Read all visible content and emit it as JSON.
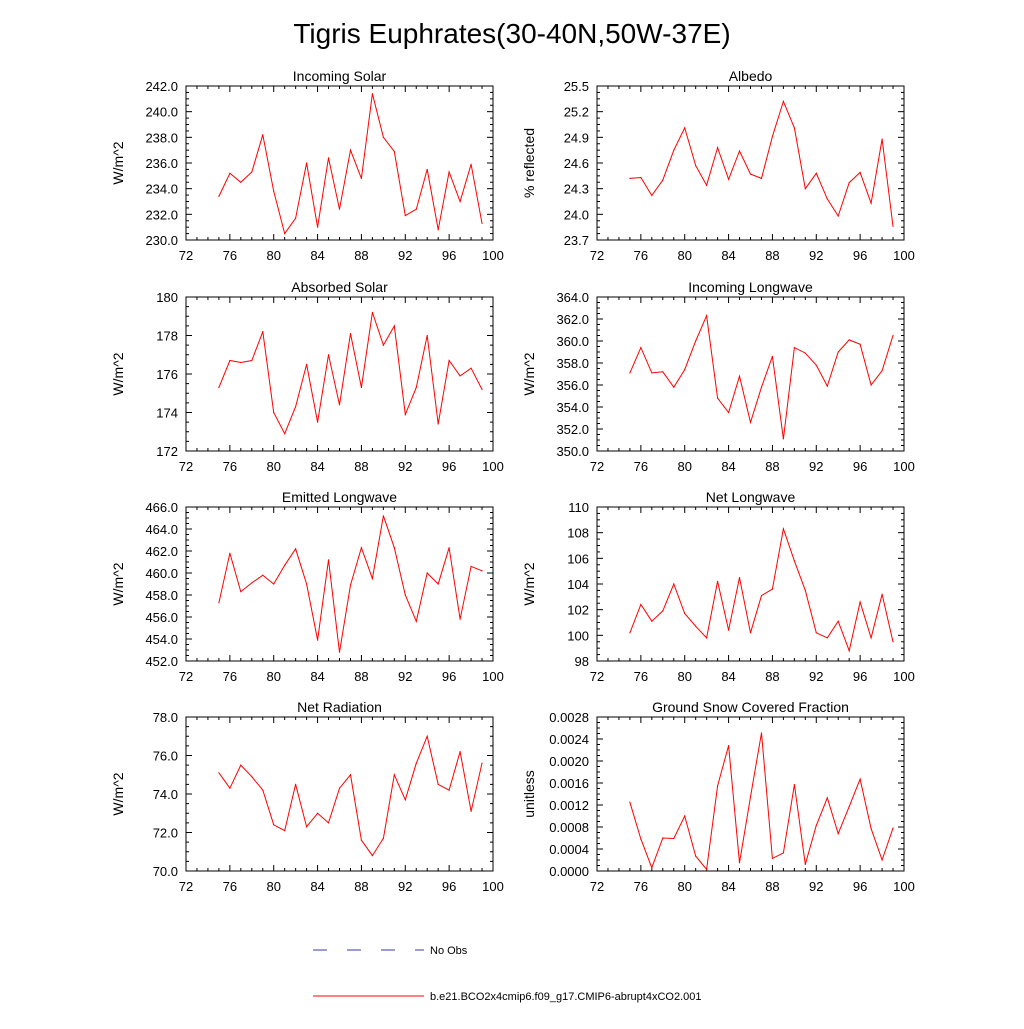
{
  "figure_title": "Tigris Euphrates(30-40N,50W-37E)",
  "colors": {
    "model_line": "#ff0000",
    "obs_line": "#3a3aa8",
    "axis": "#000000"
  },
  "legend": {
    "obs_label": "No Obs",
    "model_label": "b.e21.BCO2x4cmip6.f09_g17.CMIP6-abrupt4xCO2.001"
  },
  "chart_data": [
    {
      "type": "line",
      "title": "Incoming Solar",
      "ylabel": "W/m^2",
      "xlabel": "",
      "xlim": [
        72,
        100
      ],
      "ylim": [
        230.0,
        242.0
      ],
      "xticks": [
        "72",
        "76",
        "80",
        "84",
        "88",
        "92",
        "96",
        "100"
      ],
      "yticks": [
        "230.0",
        "232.0",
        "234.0",
        "236.0",
        "238.0",
        "240.0",
        "242.0"
      ],
      "x": [
        75,
        76,
        77,
        78,
        79,
        80,
        81,
        82,
        83,
        84,
        85,
        86,
        87,
        88,
        89,
        90,
        91,
        92,
        93,
        94,
        95,
        96,
        97,
        98,
        99
      ],
      "series": [
        {
          "name": "b.e21.BCO2x4cmip6.f09_g17.CMIP6-abrupt4xCO2.001",
          "values": [
            233.4,
            235.2,
            234.5,
            235.3,
            238.2,
            233.8,
            230.5,
            231.7,
            236.0,
            231.0,
            236.4,
            232.4,
            237.0,
            234.8,
            241.4,
            238.0,
            236.9,
            231.9,
            232.4,
            235.5,
            230.8,
            235.3,
            233.0,
            235.9,
            231.3
          ]
        }
      ]
    },
    {
      "type": "line",
      "title": "Albedo",
      "ylabel": "% reflected",
      "xlabel": "",
      "xlim": [
        72,
        100
      ],
      "ylim": [
        23.7,
        25.5
      ],
      "xticks": [
        "72",
        "76",
        "80",
        "84",
        "88",
        "92",
        "96",
        "100"
      ],
      "yticks": [
        "23.7",
        "24.0",
        "24.3",
        "24.6",
        "24.9",
        "25.2",
        "25.5"
      ],
      "x": [
        75,
        76,
        77,
        78,
        79,
        80,
        81,
        82,
        83,
        84,
        85,
        86,
        87,
        88,
        89,
        90,
        91,
        92,
        93,
        94,
        95,
        96,
        97,
        98,
        99
      ],
      "series": [
        {
          "name": "b.e21.BCO2x4cmip6.f09_g17.CMIP6-abrupt4xCO2.001",
          "values": [
            24.42,
            24.43,
            24.22,
            24.4,
            24.75,
            25.01,
            24.57,
            24.34,
            24.78,
            24.41,
            24.74,
            24.47,
            24.42,
            24.91,
            25.32,
            25.01,
            24.3,
            24.48,
            24.18,
            23.98,
            24.37,
            24.49,
            24.13,
            24.88,
            23.86
          ]
        }
      ]
    },
    {
      "type": "line",
      "title": "Absorbed Solar",
      "ylabel": "W/m^2",
      "xlabel": "",
      "xlim": [
        72,
        100
      ],
      "ylim": [
        172,
        180
      ],
      "xticks": [
        "72",
        "76",
        "80",
        "84",
        "88",
        "92",
        "96",
        "100"
      ],
      "yticks": [
        "172",
        "174",
        "176",
        "178",
        "180"
      ],
      "x": [
        75,
        76,
        77,
        78,
        79,
        80,
        81,
        82,
        83,
        84,
        85,
        86,
        87,
        88,
        89,
        90,
        91,
        92,
        93,
        94,
        95,
        96,
        97,
        98,
        99
      ],
      "series": [
        {
          "name": "b.e21.BCO2x4cmip6.f09_g17.CMIP6-abrupt4xCO2.001",
          "values": [
            175.3,
            176.7,
            176.6,
            176.7,
            178.2,
            174.0,
            172.9,
            174.3,
            176.5,
            173.5,
            177.0,
            174.4,
            178.1,
            175.3,
            179.2,
            177.5,
            178.5,
            173.9,
            175.3,
            178.0,
            173.4,
            176.7,
            175.9,
            176.3,
            175.2
          ]
        }
      ]
    },
    {
      "type": "line",
      "title": "Incoming Longwave",
      "ylabel": "W/m^2",
      "xlabel": "",
      "xlim": [
        72,
        100
      ],
      "ylim": [
        350.0,
        364.0
      ],
      "xticks": [
        "72",
        "76",
        "80",
        "84",
        "88",
        "92",
        "96",
        "100"
      ],
      "yticks": [
        "350.0",
        "352.0",
        "354.0",
        "356.0",
        "358.0",
        "360.0",
        "362.0",
        "364.0"
      ],
      "x": [
        75,
        76,
        77,
        78,
        79,
        80,
        81,
        82,
        83,
        84,
        85,
        86,
        87,
        88,
        89,
        90,
        91,
        92,
        93,
        94,
        95,
        96,
        97,
        98,
        99
      ],
      "series": [
        {
          "name": "b.e21.BCO2x4cmip6.f09_g17.CMIP6-abrupt4xCO2.001",
          "values": [
            357.1,
            359.4,
            357.1,
            357.2,
            355.8,
            357.4,
            360.0,
            362.3,
            354.8,
            353.5,
            356.8,
            352.6,
            355.8,
            358.6,
            351.1,
            359.4,
            358.9,
            357.8,
            355.9,
            359.0,
            360.1,
            359.7,
            356.0,
            357.3,
            360.5
          ]
        }
      ]
    },
    {
      "type": "line",
      "title": "Emitted Longwave",
      "ylabel": "W/m^2",
      "xlabel": "",
      "xlim": [
        72,
        100
      ],
      "ylim": [
        452.0,
        466.0
      ],
      "xticks": [
        "72",
        "76",
        "80",
        "84",
        "88",
        "92",
        "96",
        "100"
      ],
      "yticks": [
        "452.0",
        "454.0",
        "456.0",
        "458.0",
        "460.0",
        "462.0",
        "464.0",
        "466.0"
      ],
      "x": [
        75,
        76,
        77,
        78,
        79,
        80,
        81,
        82,
        83,
        84,
        85,
        86,
        87,
        88,
        89,
        90,
        91,
        92,
        93,
        94,
        95,
        96,
        97,
        98,
        99
      ],
      "series": [
        {
          "name": "b.e21.BCO2x4cmip6.f09_g17.CMIP6-abrupt4xCO2.001",
          "values": [
            457.3,
            461.8,
            458.3,
            459.1,
            459.8,
            459.0,
            460.7,
            462.2,
            459.0,
            453.9,
            461.2,
            452.8,
            458.9,
            462.3,
            459.5,
            465.2,
            462.3,
            458.0,
            455.6,
            460.0,
            459.0,
            462.3,
            455.8,
            460.6,
            460.2
          ]
        }
      ]
    },
    {
      "type": "line",
      "title": "Net Longwave",
      "ylabel": "W/m^2",
      "xlabel": "",
      "xlim": [
        72,
        100
      ],
      "ylim": [
        98,
        110
      ],
      "xticks": [
        "72",
        "76",
        "80",
        "84",
        "88",
        "92",
        "96",
        "100"
      ],
      "yticks": [
        "98",
        "100",
        "102",
        "104",
        "106",
        "108",
        "110"
      ],
      "x": [
        75,
        76,
        77,
        78,
        79,
        80,
        81,
        82,
        83,
        84,
        85,
        86,
        87,
        88,
        89,
        90,
        91,
        92,
        93,
        94,
        95,
        96,
        97,
        98,
        99
      ],
      "series": [
        {
          "name": "b.e21.BCO2x4cmip6.f09_g17.CMIP6-abrupt4xCO2.001",
          "values": [
            100.2,
            102.4,
            101.1,
            101.9,
            104.0,
            101.7,
            100.7,
            99.8,
            104.2,
            100.4,
            104.5,
            100.2,
            103.1,
            103.6,
            108.3,
            105.8,
            103.5,
            100.2,
            99.8,
            101.1,
            98.8,
            102.6,
            99.8,
            103.2,
            99.5
          ]
        }
      ]
    },
    {
      "type": "line",
      "title": "Net Radiation",
      "ylabel": "W/m^2",
      "xlabel": "",
      "xlim": [
        72,
        100
      ],
      "ylim": [
        70.0,
        78.0
      ],
      "xticks": [
        "72",
        "76",
        "80",
        "84",
        "88",
        "92",
        "96",
        "100"
      ],
      "yticks": [
        "70.0",
        "72.0",
        "74.0",
        "76.0",
        "78.0"
      ],
      "x": [
        75,
        76,
        77,
        78,
        79,
        80,
        81,
        82,
        83,
        84,
        85,
        86,
        87,
        88,
        89,
        90,
        91,
        92,
        93,
        94,
        95,
        96,
        97,
        98,
        99
      ],
      "series": [
        {
          "name": "b.e21.BCO2x4cmip6.f09_g17.CMIP6-abrupt4xCO2.001",
          "values": [
            75.1,
            74.3,
            75.5,
            74.9,
            74.2,
            72.4,
            72.1,
            74.5,
            72.3,
            73.0,
            72.5,
            74.3,
            75.0,
            71.6,
            70.8,
            71.7,
            75.0,
            73.7,
            75.6,
            77.0,
            74.5,
            74.2,
            76.2,
            73.1,
            75.6
          ]
        }
      ]
    },
    {
      "type": "line",
      "title": "Ground Snow Covered Fraction",
      "ylabel": "unitless",
      "xlabel": "",
      "xlim": [
        72,
        100
      ],
      "ylim": [
        0.0,
        0.0028
      ],
      "xticks": [
        "72",
        "76",
        "80",
        "84",
        "88",
        "92",
        "96",
        "100"
      ],
      "yticks": [
        "0.0000",
        "0.0004",
        "0.0008",
        "0.0012",
        "0.0016",
        "0.0020",
        "0.0024",
        "0.0028"
      ],
      "x": [
        75,
        76,
        77,
        78,
        79,
        80,
        81,
        82,
        83,
        84,
        85,
        86,
        87,
        88,
        89,
        90,
        91,
        92,
        93,
        94,
        95,
        96,
        97,
        98,
        99
      ],
      "series": [
        {
          "name": "b.e21.BCO2x4cmip6.f09_g17.CMIP6-abrupt4xCO2.001",
          "values": [
            0.00125,
            0.00058,
            6e-05,
            0.0006,
            0.00059,
            0.001,
            0.00027,
            3e-05,
            0.00155,
            0.00228,
            0.00015,
            0.00135,
            0.00251,
            0.00023,
            0.00033,
            0.00157,
            0.00012,
            0.00083,
            0.00133,
            0.00068,
            0.00117,
            0.00167,
            0.00077,
            0.0002,
            0.00078
          ]
        }
      ]
    }
  ]
}
